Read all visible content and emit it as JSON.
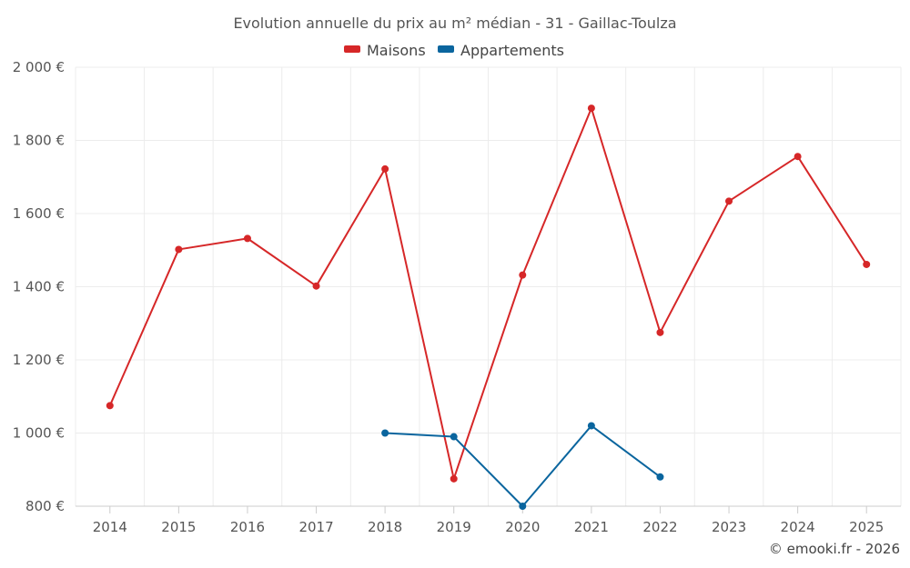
{
  "chart_data": {
    "type": "line",
    "title": "Evolution annuelle du prix au m² médian - 31 - Gaillac-Toulza",
    "categories": [
      "2014",
      "2015",
      "2016",
      "2017",
      "2018",
      "2019",
      "2020",
      "2021",
      "2022",
      "2023",
      "2024",
      "2025"
    ],
    "ylim": [
      800,
      2000
    ],
    "yticks": [
      800,
      1000,
      1200,
      1400,
      1600,
      1800,
      2000
    ],
    "ytick_labels": [
      "800 €",
      "1 000 €",
      "1 200 €",
      "1 400 €",
      "1 600 €",
      "1 800 €",
      "2 000 €"
    ],
    "grid": true,
    "legend_position": "top-center",
    "series": [
      {
        "name": "Maisons",
        "color": "#d62728",
        "values": [
          1075,
          1502,
          1532,
          1402,
          1722,
          875,
          1432,
          1888,
          1275,
          1634,
          1756,
          1461
        ]
      },
      {
        "name": "Appartements",
        "color": "#0a659e",
        "values": [
          null,
          null,
          null,
          null,
          1000,
          990,
          800,
          1020,
          880,
          null,
          null,
          null
        ]
      }
    ]
  },
  "credit": "© emooki.fr - 2026"
}
